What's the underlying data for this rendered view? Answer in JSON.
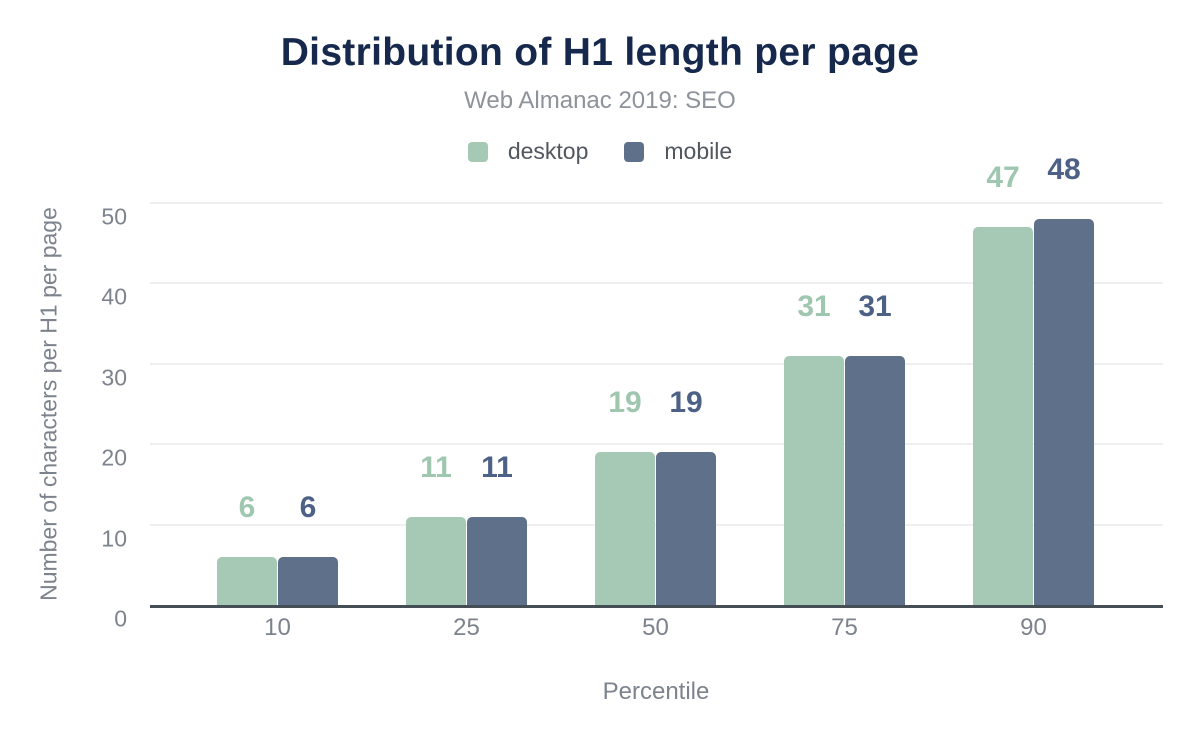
{
  "chart_data": {
    "type": "bar",
    "title": "Distribution of H1 length per page",
    "subtitle": "Web Almanac 2019: SEO",
    "categories": [
      "10",
      "25",
      "50",
      "75",
      "90"
    ],
    "series": [
      {
        "name": "desktop",
        "color": "#a5c9b5",
        "label_color": "#9fc7b0",
        "values": [
          6,
          11,
          19,
          31,
          47
        ]
      },
      {
        "name": "mobile",
        "color": "#5f708b",
        "label_color": "#4d6186",
        "values": [
          6,
          11,
          19,
          31,
          48
        ]
      }
    ],
    "xlabel": "Percentile",
    "ylabel": "Number of characters per H1 per page",
    "ylim": [
      0,
      50
    ],
    "yticks": [
      0,
      10,
      20,
      30,
      40,
      50
    ],
    "grid": true,
    "legend_position": "top",
    "data_labels": true
  }
}
